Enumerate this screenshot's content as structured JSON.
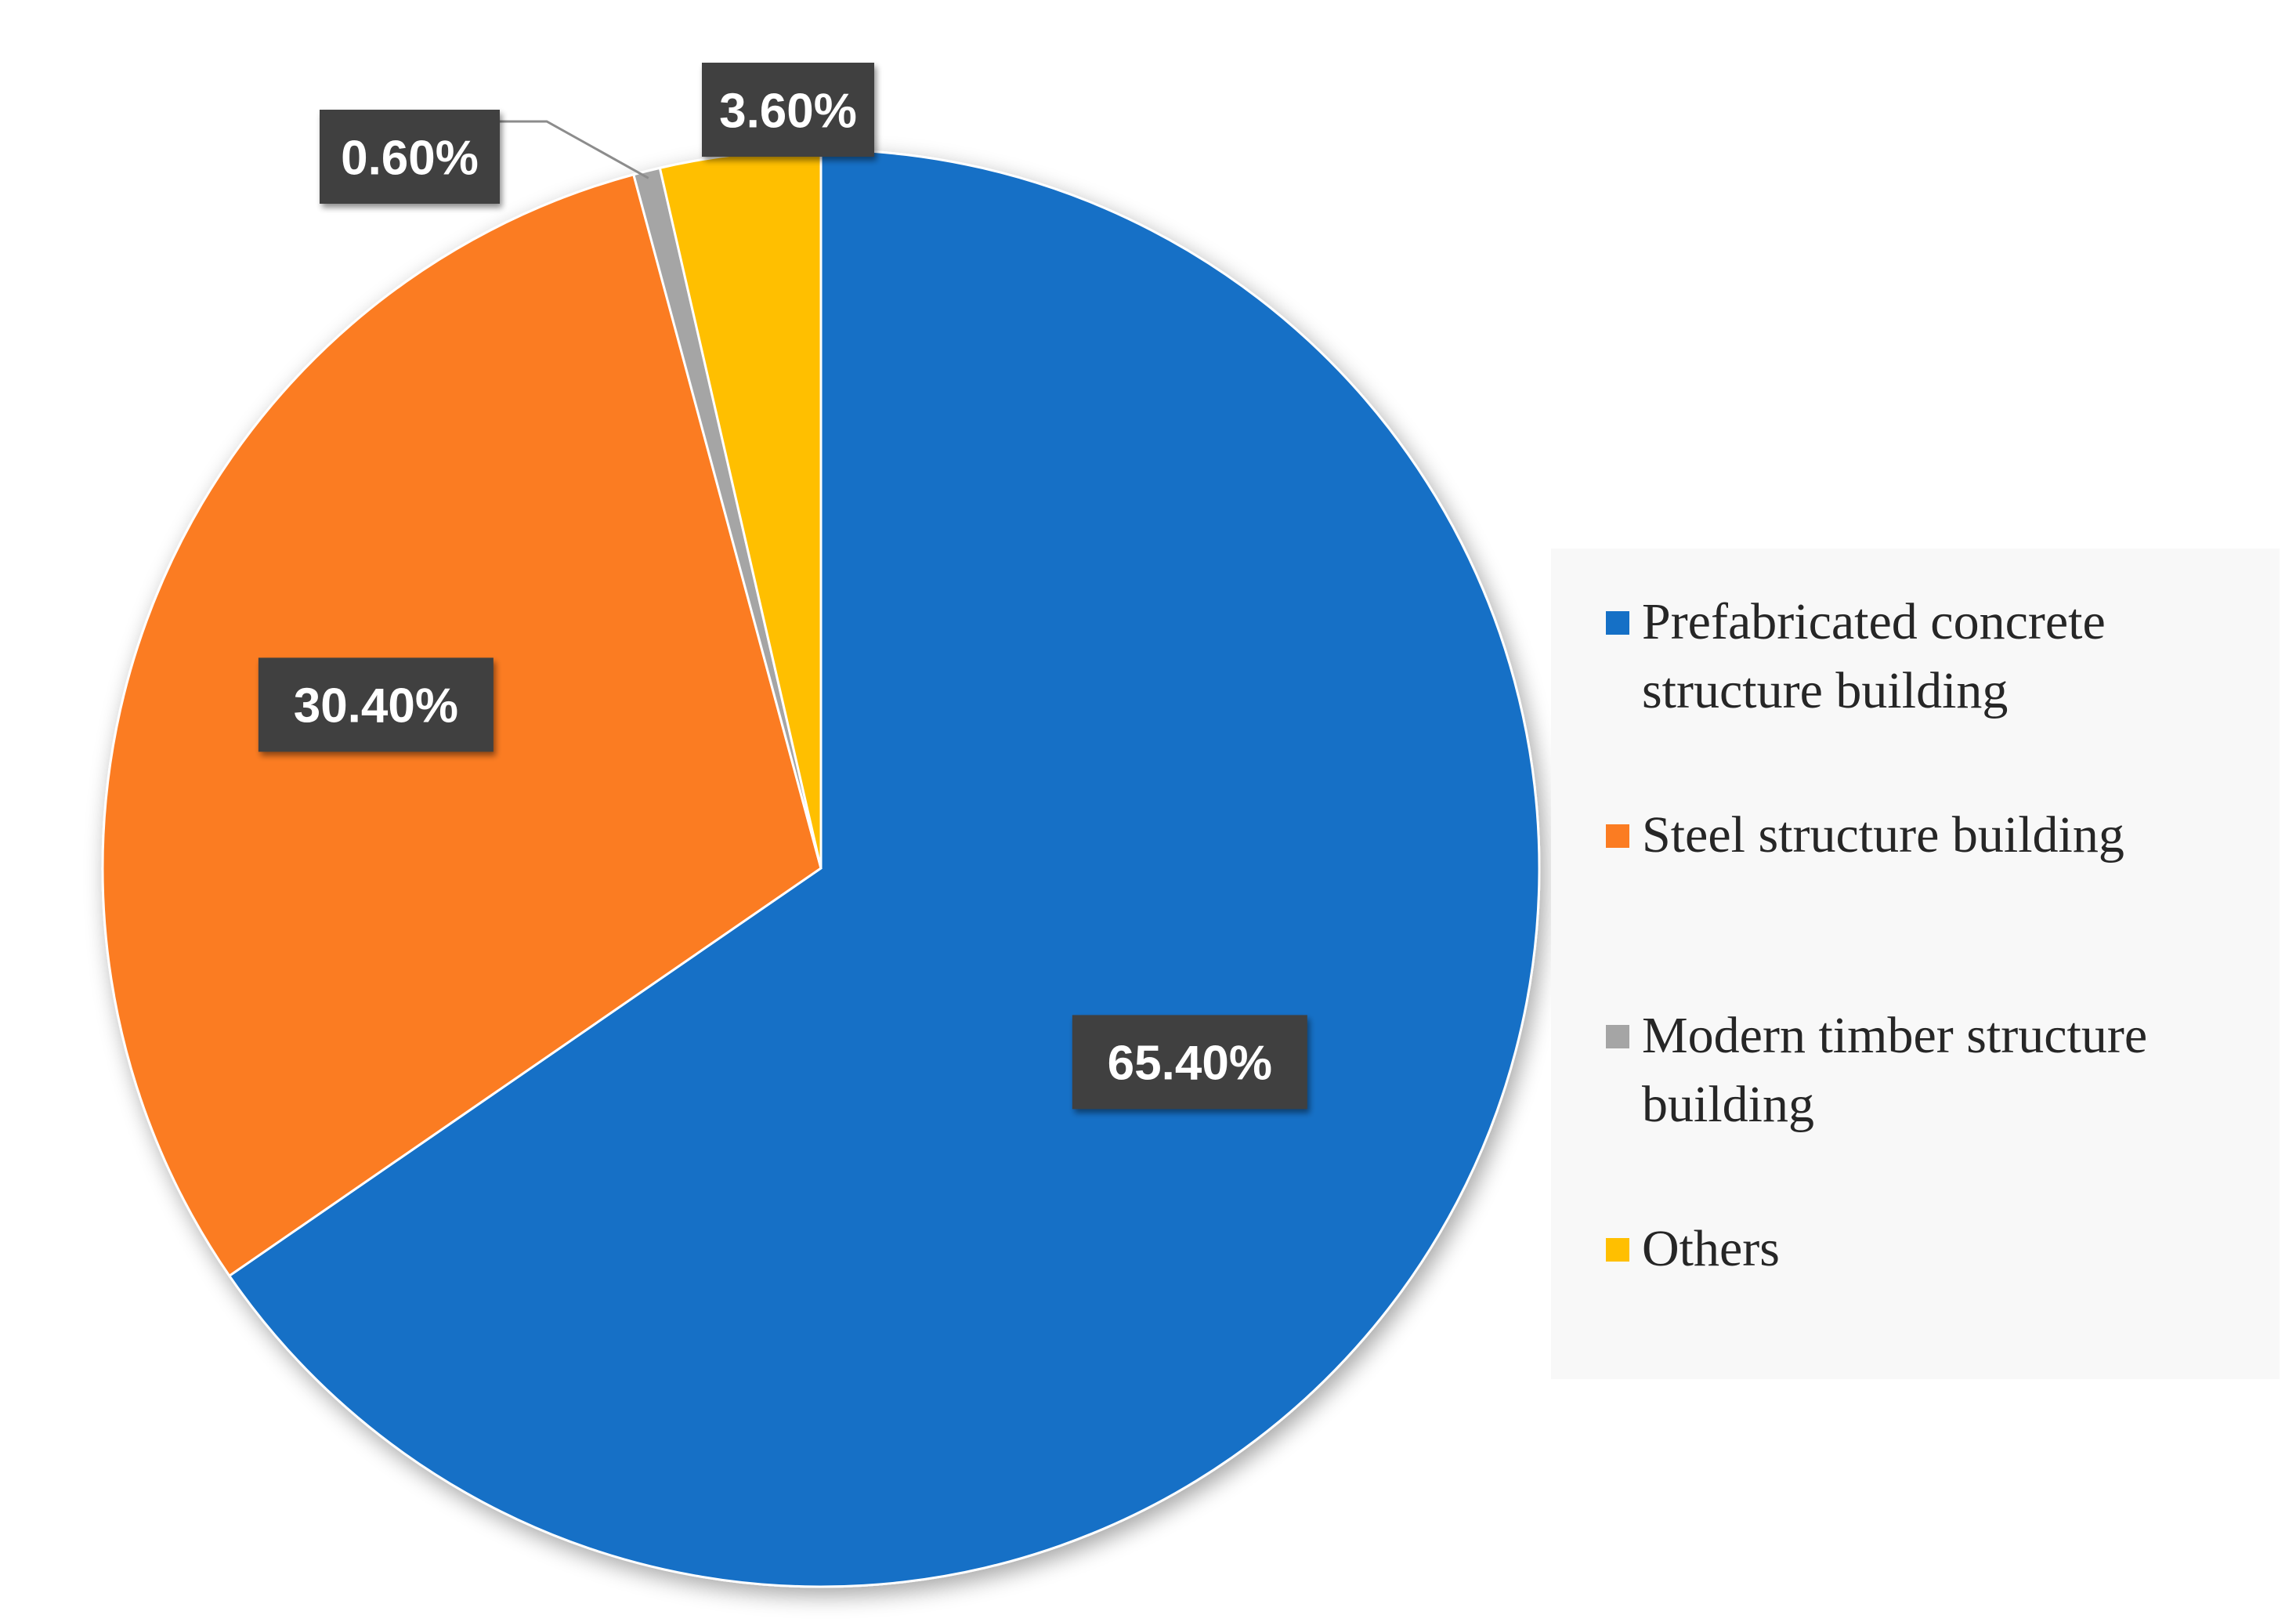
{
  "chart_data": {
    "type": "pie",
    "title": "",
    "start_angle_deg": 0,
    "direction": "clockwise",
    "legend_position": "right",
    "slices": [
      {
        "label": "Prefabricated concrete structure building",
        "value": 65.4,
        "display": "65.40%",
        "color": "#1570c6"
      },
      {
        "label": "Steel structure building",
        "value": 30.4,
        "display": "30.40%",
        "color": "#fb7c22"
      },
      {
        "label": "Modern timber structure building",
        "value": 0.6,
        "display": "0.60%",
        "color": "#a5a5a5"
      },
      {
        "label": "Others",
        "value": 3.6,
        "display": "3.60%",
        "color": "#ffbf00"
      }
    ]
  },
  "legend": {
    "items": [
      {
        "label": "Prefabricated concrete structure building",
        "color": "#1570c6"
      },
      {
        "label": "Steel structure building",
        "color": "#fb7c22"
      },
      {
        "label": "Modern timber structure building",
        "color": "#a5a5a5"
      },
      {
        "label": "Others",
        "color": "#ffbf00"
      }
    ]
  },
  "label_style": {
    "box_color": "#404040",
    "text_color": "#ffffff",
    "leader_color": "#8c8c8c"
  }
}
